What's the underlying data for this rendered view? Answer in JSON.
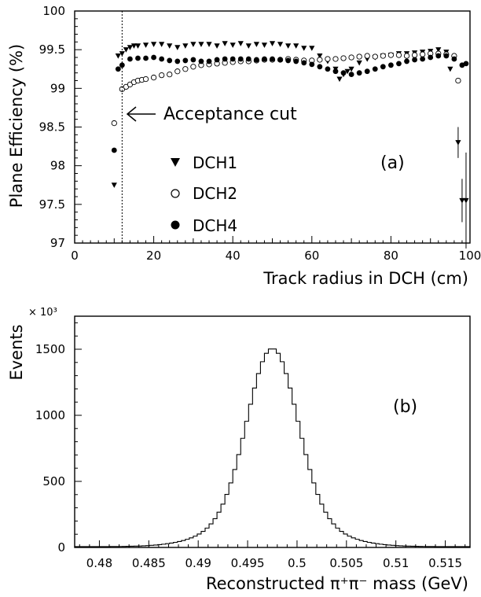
{
  "chart_data": [
    {
      "type": "scatter",
      "panel_label": "(a)",
      "xlabel": "Track radius in DCH (cm)",
      "ylabel": "Plane Efficiency (%)",
      "xlim": [
        0,
        100
      ],
      "ylim": [
        97,
        100
      ],
      "xticks": [
        0,
        20,
        40,
        60,
        80,
        100
      ],
      "xtick_labels": [
        "0",
        "20",
        "40",
        "60",
        "80",
        "100"
      ],
      "yticks": [
        97,
        97.5,
        98,
        98.5,
        99,
        99.5,
        100
      ],
      "ytick_labels": [
        "97",
        "97.5",
        "98",
        "98.5",
        "99",
        "99.5",
        "100"
      ],
      "cut_x": 12,
      "annotation": "Acceptance cut",
      "series": [
        {
          "name": "DCH1",
          "marker": "triangle-down",
          "x": [
            10,
            11,
            12,
            13,
            14,
            15,
            16,
            18,
            20,
            22,
            24,
            26,
            28,
            30,
            32,
            34,
            36,
            38,
            40,
            42,
            44,
            46,
            48,
            50,
            52,
            54,
            56,
            58,
            60,
            62,
            64,
            66,
            67,
            68,
            69,
            70,
            72,
            74,
            76,
            78,
            80,
            82,
            84,
            86,
            88,
            90,
            92,
            94,
            95,
            97,
            98,
            99
          ],
          "y": [
            97.75,
            99.42,
            99.45,
            99.5,
            99.53,
            99.55,
            99.55,
            99.56,
            99.57,
            99.57,
            99.55,
            99.53,
            99.55,
            99.57,
            99.57,
            99.57,
            99.55,
            99.58,
            99.56,
            99.58,
            99.55,
            99.57,
            99.56,
            99.58,
            99.57,
            99.55,
            99.55,
            99.52,
            99.52,
            99.42,
            99.35,
            99.25,
            99.12,
            99.18,
            99.22,
            99.25,
            99.33,
            99.38,
            99.4,
            99.42,
            99.43,
            99.45,
            99.45,
            99.46,
            99.47,
            99.48,
            99.5,
            99.47,
            99.25,
            98.3,
            97.55,
            97.55
          ],
          "err": [
            0,
            0,
            0,
            0,
            0,
            0,
            0,
            0,
            0,
            0,
            0,
            0,
            0,
            0,
            0,
            0,
            0,
            0,
            0,
            0,
            0,
            0,
            0,
            0,
            0,
            0,
            0,
            0,
            0,
            0,
            0,
            0,
            0,
            0,
            0,
            0,
            0,
            0,
            0,
            0,
            0,
            0,
            0,
            0,
            0,
            0,
            0,
            0,
            0,
            0.2,
            0.28,
            0.62
          ]
        },
        {
          "name": "DCH2",
          "marker": "circle-open",
          "x": [
            10,
            12,
            13,
            14,
            15,
            16,
            17,
            18,
            20,
            22,
            24,
            26,
            28,
            30,
            32,
            34,
            36,
            38,
            40,
            42,
            44,
            46,
            48,
            50,
            52,
            54,
            56,
            58,
            60,
            62,
            64,
            66,
            68,
            70,
            72,
            74,
            76,
            78,
            80,
            82,
            84,
            86,
            88,
            90,
            92,
            94,
            96,
            97
          ],
          "y": [
            98.55,
            98.99,
            99.02,
            99.05,
            99.08,
            99.1,
            99.11,
            99.12,
            99.14,
            99.17,
            99.18,
            99.22,
            99.25,
            99.28,
            99.3,
            99.31,
            99.32,
            99.33,
            99.34,
            99.35,
            99.35,
            99.36,
            99.37,
            99.37,
            99.37,
            99.38,
            99.37,
            99.36,
            99.36,
            99.37,
            99.38,
            99.38,
            99.39,
            99.4,
            99.41,
            99.42,
            99.41,
            99.42,
            99.43,
            99.43,
            99.42,
            99.43,
            99.44,
            99.45,
            99.45,
            99.44,
            99.42,
            99.1
          ]
        },
        {
          "name": "DCH4",
          "marker": "circle-filled",
          "x": [
            10,
            11,
            12,
            14,
            16,
            18,
            20,
            22,
            24,
            26,
            28,
            30,
            32,
            34,
            36,
            38,
            40,
            42,
            44,
            46,
            48,
            50,
            52,
            54,
            56,
            58,
            60,
            62,
            64,
            66,
            68,
            70,
            72,
            74,
            76,
            78,
            80,
            82,
            84,
            86,
            88,
            90,
            92,
            94,
            96,
            98,
            99
          ],
          "y": [
            98.2,
            99.25,
            99.3,
            99.38,
            99.39,
            99.39,
            99.4,
            99.38,
            99.36,
            99.35,
            99.36,
            99.37,
            99.35,
            99.35,
            99.37,
            99.38,
            99.38,
            99.38,
            99.38,
            99.37,
            99.38,
            99.38,
            99.37,
            99.36,
            99.35,
            99.33,
            99.31,
            99.28,
            99.25,
            99.22,
            99.2,
            99.18,
            99.2,
            99.22,
            99.25,
            99.28,
            99.3,
            99.32,
            99.35,
            99.37,
            99.38,
            99.4,
            99.42,
            99.42,
            99.38,
            99.3,
            99.32
          ]
        }
      ]
    },
    {
      "type": "histogram",
      "panel_label": "(b)",
      "xlabel": "Reconstructed π⁺π⁻ mass (GeV)",
      "ylabel": "Events",
      "yscale_label": "× 10³",
      "xlim": [
        0.4775,
        0.5175
      ],
      "ylim": [
        0,
        1750
      ],
      "xticks": [
        0.48,
        0.485,
        0.49,
        0.495,
        0.5,
        0.505,
        0.51,
        0.515
      ],
      "xtick_labels": [
        "0.48",
        "0.485",
        "0.49",
        "0.495",
        "0.5",
        "0.505",
        "0.51",
        "0.515"
      ],
      "yticks": [
        0,
        500,
        1000,
        1500
      ],
      "ytick_labels": [
        "0",
        "500",
        "1000",
        "1500"
      ],
      "bin_width": 0.0004,
      "peak_center": 0.4975,
      "peak_height": 1500,
      "peak_sigma": 0.0025,
      "tail_level": 6
    }
  ]
}
